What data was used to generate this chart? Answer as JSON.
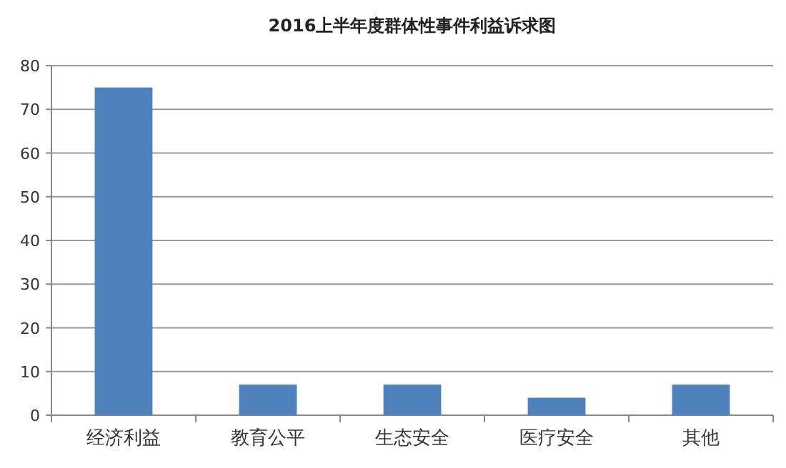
{
  "chart_data": {
    "type": "bar",
    "title": "2016上半年度群体性事件利益诉求图",
    "categories": [
      "经济利益",
      "教育公平",
      "生态安全",
      "医疗安全",
      "其他"
    ],
    "values": [
      75,
      7,
      7,
      4,
      7
    ],
    "color": "#4f81bd",
    "ylim": [
      0,
      80
    ],
    "yticks": [
      0,
      10,
      20,
      30,
      40,
      50,
      60,
      70,
      80
    ],
    "grid": "y"
  }
}
